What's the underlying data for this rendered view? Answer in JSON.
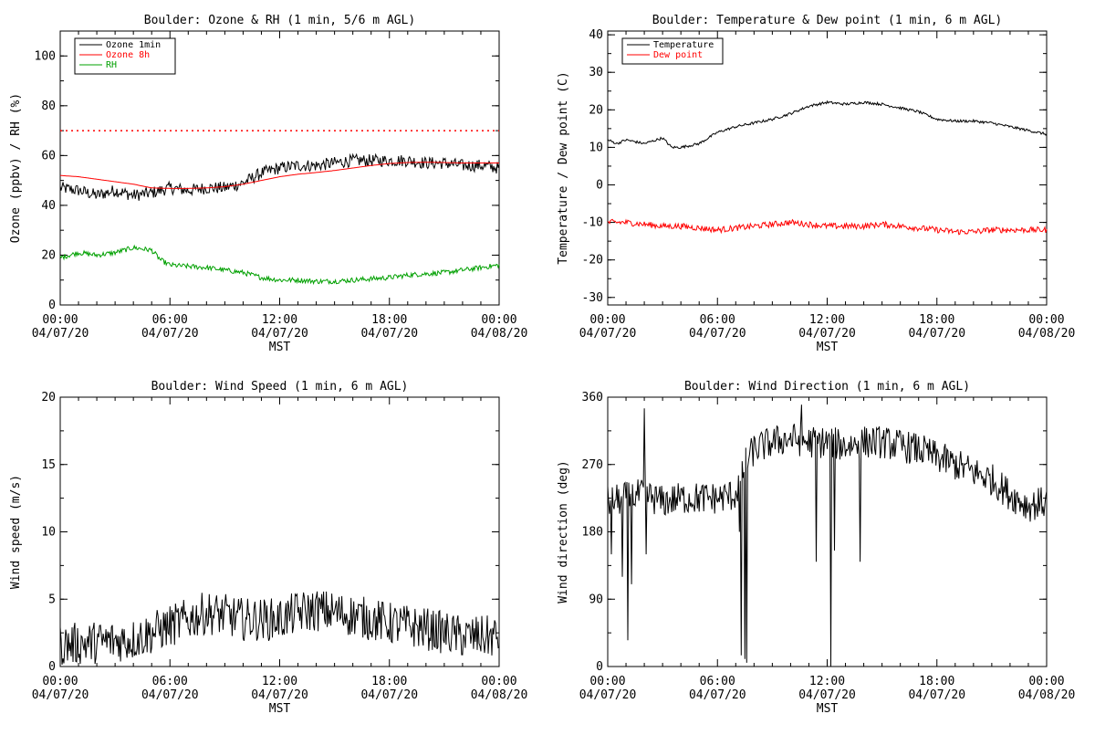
{
  "charts": [
    {
      "type": "line",
      "title": "Boulder: Ozone & RH (1 min, 5/6 m AGL)",
      "ylabel": "Ozone (ppbv) / RH (%)",
      "xlabel": "MST",
      "ylim": [
        0,
        110
      ],
      "yticks": [
        0,
        20,
        40,
        60,
        80,
        100
      ],
      "xlim": [
        0,
        24
      ],
      "xticks": [
        {
          "hour": 0,
          "time": "00:00",
          "date": "04/07/20"
        },
        {
          "hour": 6,
          "time": "06:00",
          "date": "04/07/20"
        },
        {
          "hour": 12,
          "time": "12:00",
          "date": "04/07/20"
        },
        {
          "hour": 18,
          "time": "18:00",
          "date": "04/07/20"
        },
        {
          "hour": 24,
          "time": "00:00",
          "date": "04/08/20"
        }
      ],
      "reference_lines": [
        {
          "y": 70,
          "color": "#ff0000",
          "style": "dotted"
        }
      ],
      "legend": {
        "position": "top-left"
      },
      "series": [
        {
          "name": "Ozone 1min",
          "color": "#000000",
          "noise": 2.5,
          "x": [
            0,
            1,
            2,
            3,
            4,
            5,
            6,
            7,
            8,
            9,
            10,
            11,
            12,
            13,
            14,
            15,
            16,
            17,
            18,
            19,
            20,
            21,
            22,
            23,
            24
          ],
          "y": [
            47,
            46,
            44,
            46,
            44,
            45,
            47,
            46,
            47,
            47,
            49,
            53,
            55,
            56,
            56,
            57,
            58,
            58,
            58,
            58,
            57,
            57,
            56,
            56,
            55
          ]
        },
        {
          "name": "Ozone 8h",
          "color": "#ff0000",
          "noise": 0,
          "x": [
            0,
            1,
            2,
            3,
            4,
            5,
            6,
            7,
            8,
            9,
            10,
            11,
            12,
            13,
            14,
            15,
            16,
            17,
            18,
            19,
            20,
            21,
            22,
            23,
            24
          ],
          "y": [
            52,
            51.5,
            50.5,
            49.5,
            48.5,
            47,
            46.8,
            46.8,
            47,
            47.5,
            48.5,
            50,
            51.5,
            52.5,
            53.2,
            54,
            55,
            56,
            56.8,
            57.2,
            57.3,
            57.2,
            57,
            57,
            57
          ]
        },
        {
          "name": "RH",
          "color": "#00a000",
          "noise": 1.0,
          "x": [
            0,
            1,
            2,
            3,
            4,
            5,
            5.5,
            6,
            7,
            8,
            9,
            10,
            11,
            12,
            13,
            14,
            15,
            16,
            17,
            18,
            19,
            20,
            21,
            22,
            23,
            24
          ],
          "y": [
            19,
            21,
            20,
            21,
            23,
            22,
            18,
            16,
            15.5,
            15,
            14,
            13,
            11,
            10,
            10,
            9.5,
            9.5,
            10,
            10.5,
            11,
            12,
            12.5,
            13,
            14,
            15,
            16
          ]
        }
      ]
    },
    {
      "type": "line",
      "title": "Boulder: Temperature & Dew point (1 min, 6 m AGL)",
      "ylabel": "Temperature / Dew point (C)",
      "xlabel": "MST",
      "ylim": [
        -32,
        41
      ],
      "yticks": [
        -30,
        -20,
        -10,
        0,
        10,
        20,
        30,
        40
      ],
      "xlim": [
        0,
        24
      ],
      "xticks": [
        {
          "hour": 0,
          "time": "00:00",
          "date": "04/07/20"
        },
        {
          "hour": 6,
          "time": "06:00",
          "date": "04/07/20"
        },
        {
          "hour": 12,
          "time": "12:00",
          "date": "04/07/20"
        },
        {
          "hour": 18,
          "time": "18:00",
          "date": "04/07/20"
        },
        {
          "hour": 24,
          "time": "00:00",
          "date": "04/08/20"
        }
      ],
      "legend": {
        "position": "top-left"
      },
      "series": [
        {
          "name": "Temperature",
          "color": "#000000",
          "noise": 0.35,
          "x": [
            0,
            0.5,
            1,
            2,
            3,
            3.5,
            4,
            5,
            6,
            7,
            8,
            9,
            10,
            11,
            12,
            13,
            14,
            15,
            16,
            17,
            18,
            19,
            20,
            21,
            22,
            23,
            24
          ],
          "y": [
            12,
            11,
            12,
            11,
            12.5,
            10,
            10,
            11,
            14,
            15.5,
            16.5,
            17.5,
            19,
            21,
            22,
            21.5,
            22,
            21.5,
            20.5,
            19.5,
            17.5,
            17,
            17,
            16.5,
            15.5,
            14.5,
            13.5
          ]
        },
        {
          "name": "Dew point",
          "color": "#ff0000",
          "noise": 0.8,
          "x": [
            0,
            1,
            2,
            3,
            4,
            5,
            6,
            7,
            8,
            9,
            10,
            11,
            12,
            13,
            14,
            15,
            16,
            17,
            18,
            19,
            20,
            21,
            22,
            23,
            24
          ],
          "y": [
            -10,
            -10,
            -10.5,
            -11,
            -11,
            -11.5,
            -12,
            -11.5,
            -11,
            -10.5,
            -10,
            -10.5,
            -11,
            -11,
            -11,
            -10.5,
            -11,
            -11.5,
            -12,
            -12.5,
            -12.5,
            -12,
            -12,
            -12,
            -12
          ]
        }
      ]
    },
    {
      "type": "line",
      "title": "Boulder: Wind Speed (1 min, 6 m AGL)",
      "ylabel": "Wind speed (m/s)",
      "xlabel": "MST",
      "ylim": [
        0,
        20
      ],
      "yticks": [
        0,
        5,
        10,
        15,
        20
      ],
      "xlim": [
        0,
        24
      ],
      "xticks": [
        {
          "hour": 0,
          "time": "00:00",
          "date": "04/07/20"
        },
        {
          "hour": 6,
          "time": "06:00",
          "date": "04/07/20"
        },
        {
          "hour": 12,
          "time": "12:00",
          "date": "04/07/20"
        },
        {
          "hour": 18,
          "time": "18:00",
          "date": "04/07/20"
        },
        {
          "hour": 24,
          "time": "00:00",
          "date": "04/08/20"
        }
      ],
      "series": [
        {
          "name": "",
          "color": "#000000",
          "noise": 1.6,
          "clip_min": 0,
          "x": [
            0,
            2,
            4,
            5,
            6,
            7,
            8,
            9,
            10,
            11,
            12,
            13,
            14,
            15,
            16,
            17,
            18,
            19,
            20,
            21,
            22,
            23,
            24
          ],
          "y": [
            1.6,
            1.8,
            2,
            2.5,
            3,
            3.5,
            4,
            3.8,
            3.5,
            3.5,
            3.5,
            4,
            4.2,
            4,
            3.8,
            3.5,
            3.2,
            3,
            2.8,
            2.5,
            2.2,
            2.2,
            2.2
          ]
        }
      ]
    },
    {
      "type": "line",
      "title": "Boulder: Wind Direction (1 min, 6 m AGL)",
      "ylabel": "Wind direction (deg)",
      "xlabel": "MST",
      "ylim": [
        0,
        360
      ],
      "yticks": [
        0,
        90,
        180,
        270,
        360
      ],
      "xlim": [
        0,
        24
      ],
      "xticks": [
        {
          "hour": 0,
          "time": "00:00",
          "date": "04/07/20"
        },
        {
          "hour": 6,
          "time": "06:00",
          "date": "04/07/20"
        },
        {
          "hour": 12,
          "time": "12:00",
          "date": "04/07/20"
        },
        {
          "hour": 18,
          "time": "18:00",
          "date": "04/07/20"
        },
        {
          "hour": 24,
          "time": "00:00",
          "date": "04/08/20"
        }
      ],
      "series": [
        {
          "name": "",
          "color": "#000000",
          "noise": 22,
          "clip_min": 0,
          "clip_max": 360,
          "x": [
            0,
            1,
            2,
            3,
            4,
            5,
            6,
            7,
            7.5,
            8,
            9,
            10,
            11,
            12,
            13,
            14,
            15,
            16,
            17,
            18,
            19,
            20,
            21,
            22,
            23,
            24
          ],
          "y": [
            220,
            225,
            230,
            220,
            225,
            225,
            225,
            230,
            270,
            290,
            300,
            305,
            300,
            300,
            295,
            300,
            300,
            295,
            290,
            280,
            270,
            260,
            250,
            230,
            215,
            220
          ],
          "spikes": [
            [
              0.2,
              150
            ],
            [
              0.8,
              120
            ],
            [
              1.1,
              35
            ],
            [
              1.3,
              110
            ],
            [
              2,
              345
            ],
            [
              2.1,
              150
            ],
            [
              7.2,
              180
            ],
            [
              7.3,
              15
            ],
            [
              7.5,
              10
            ],
            [
              7.6,
              5
            ],
            [
              10.6,
              350
            ],
            [
              11.4,
              140
            ],
            [
              12.2,
              0
            ],
            [
              12.4,
              155
            ],
            [
              13.8,
              140
            ]
          ]
        }
      ]
    }
  ]
}
